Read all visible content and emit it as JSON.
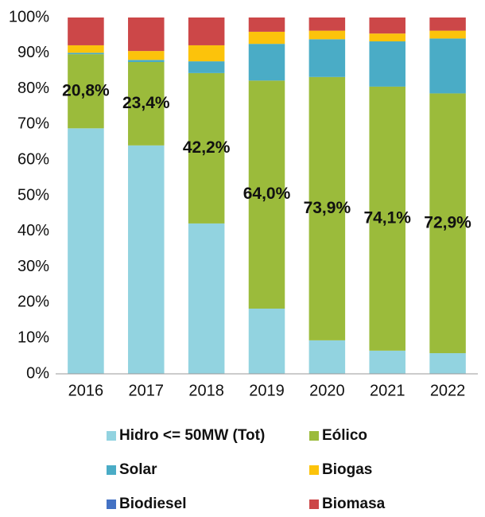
{
  "chart_data": {
    "type": "stacked_bar",
    "categories": [
      "2016",
      "2017",
      "2018",
      "2019",
      "2020",
      "2021",
      "2022"
    ],
    "series": [
      {
        "name": "Hidro <= 50MW (Tot)",
        "color": "#92d3e0",
        "values": [
          68.9,
          64.1,
          42.2,
          18.3,
          9.4,
          6.5,
          5.8
        ]
      },
      {
        "name": "Eólico",
        "color": "#9bbb3b",
        "values": [
          20.8,
          23.4,
          42.2,
          64.0,
          73.9,
          74.1,
          72.9
        ],
        "value_labels": [
          "20,8%",
          "23,4%",
          "42,2%",
          "64,0%",
          "73,9%",
          "74,1%",
          "72,9%"
        ]
      },
      {
        "name": "Solar",
        "color": "#4aacc6",
        "values": [
          0.4,
          0.6,
          3.3,
          10.3,
          10.6,
          12.7,
          15.4
        ]
      },
      {
        "name": "Biogas",
        "color": "#fcc30b",
        "values": [
          2.1,
          2.5,
          4.5,
          3.4,
          2.4,
          2.2,
          2.2
        ]
      },
      {
        "name": "Biodiesel",
        "color": "#4472c4",
        "values": [
          0,
          0,
          0,
          0,
          0,
          0,
          0
        ]
      },
      {
        "name": "Biomasa",
        "color": "#cc4748",
        "values": [
          7.8,
          9.4,
          7.8,
          4.0,
          3.7,
          4.5,
          3.7
        ]
      }
    ],
    "ylim": [
      0,
      100
    ],
    "yticks": [
      {
        "value": 0,
        "label": "0%"
      },
      {
        "value": 10,
        "label": "10%"
      },
      {
        "value": 20,
        "label": "20%"
      },
      {
        "value": 30,
        "label": "30%"
      },
      {
        "value": 40,
        "label": "40%"
      },
      {
        "value": 50,
        "label": "50%"
      },
      {
        "value": 60,
        "label": "60%"
      },
      {
        "value": 70,
        "label": "70%"
      },
      {
        "value": 80,
        "label": "80%"
      },
      {
        "value": 90,
        "label": "90%"
      },
      {
        "value": 100,
        "label": "100%"
      }
    ],
    "grid": false
  }
}
